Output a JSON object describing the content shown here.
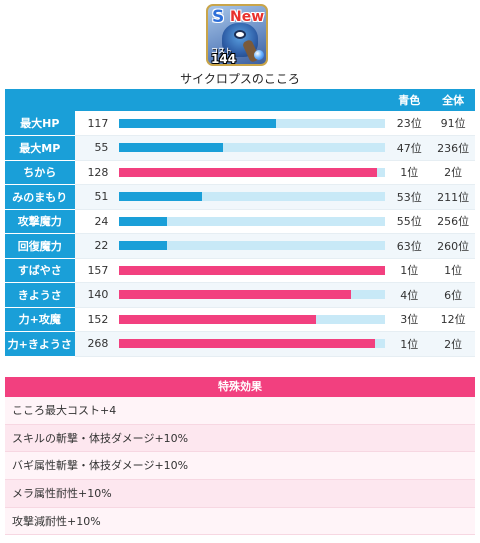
{
  "card": {
    "rank": "S",
    "badge": "New",
    "cost_label": "コスト",
    "cost_value": "144",
    "name": "サイクロプスのこころ"
  },
  "colors": {
    "header_blue": "#1a9fd8",
    "bar_blue": "#1a9fd8",
    "bar_pink": "#f2407f",
    "bar_track": "#c8e9f7"
  },
  "table": {
    "col_color_rank": "青色",
    "col_overall_rank": "全体",
    "rows": [
      {
        "label": "最大HP",
        "value": "117",
        "bar_percent": 59,
        "bar_color": "blue",
        "color_rank": "23位",
        "overall_rank": "91位"
      },
      {
        "label": "最大MP",
        "value": "55",
        "bar_percent": 39,
        "bar_color": "blue",
        "color_rank": "47位",
        "overall_rank": "236位"
      },
      {
        "label": "ちから",
        "value": "128",
        "bar_percent": 97,
        "bar_color": "pink",
        "color_rank": "1位",
        "overall_rank": "2位"
      },
      {
        "label": "みのまもり",
        "value": "51",
        "bar_percent": 31,
        "bar_color": "blue",
        "color_rank": "53位",
        "overall_rank": "211位"
      },
      {
        "label": "攻撃魔力",
        "value": "24",
        "bar_percent": 18,
        "bar_color": "blue",
        "color_rank": "55位",
        "overall_rank": "256位"
      },
      {
        "label": "回復魔力",
        "value": "22",
        "bar_percent": 18,
        "bar_color": "blue",
        "color_rank": "63位",
        "overall_rank": "260位"
      },
      {
        "label": "すばやさ",
        "value": "157",
        "bar_percent": 100,
        "bar_color": "pink",
        "color_rank": "1位",
        "overall_rank": "1位"
      },
      {
        "label": "きようさ",
        "value": "140",
        "bar_percent": 87,
        "bar_color": "pink",
        "color_rank": "4位",
        "overall_rank": "6位"
      },
      {
        "label": "力+攻魔",
        "value": "152",
        "bar_percent": 74,
        "bar_color": "pink",
        "color_rank": "3位",
        "overall_rank": "12位"
      },
      {
        "label": "力+きようさ",
        "value": "268",
        "bar_percent": 96,
        "bar_color": "pink",
        "color_rank": "1位",
        "overall_rank": "2位"
      }
    ]
  },
  "special": {
    "title": "特殊効果",
    "effects": [
      "こころ最大コスト+4",
      "スキルの斬撃・体技ダメージ+10%",
      "バギ属性斬撃・体技ダメージ+10%",
      "メラ属性耐性+10%",
      "攻撃減耐性+10%"
    ]
  }
}
